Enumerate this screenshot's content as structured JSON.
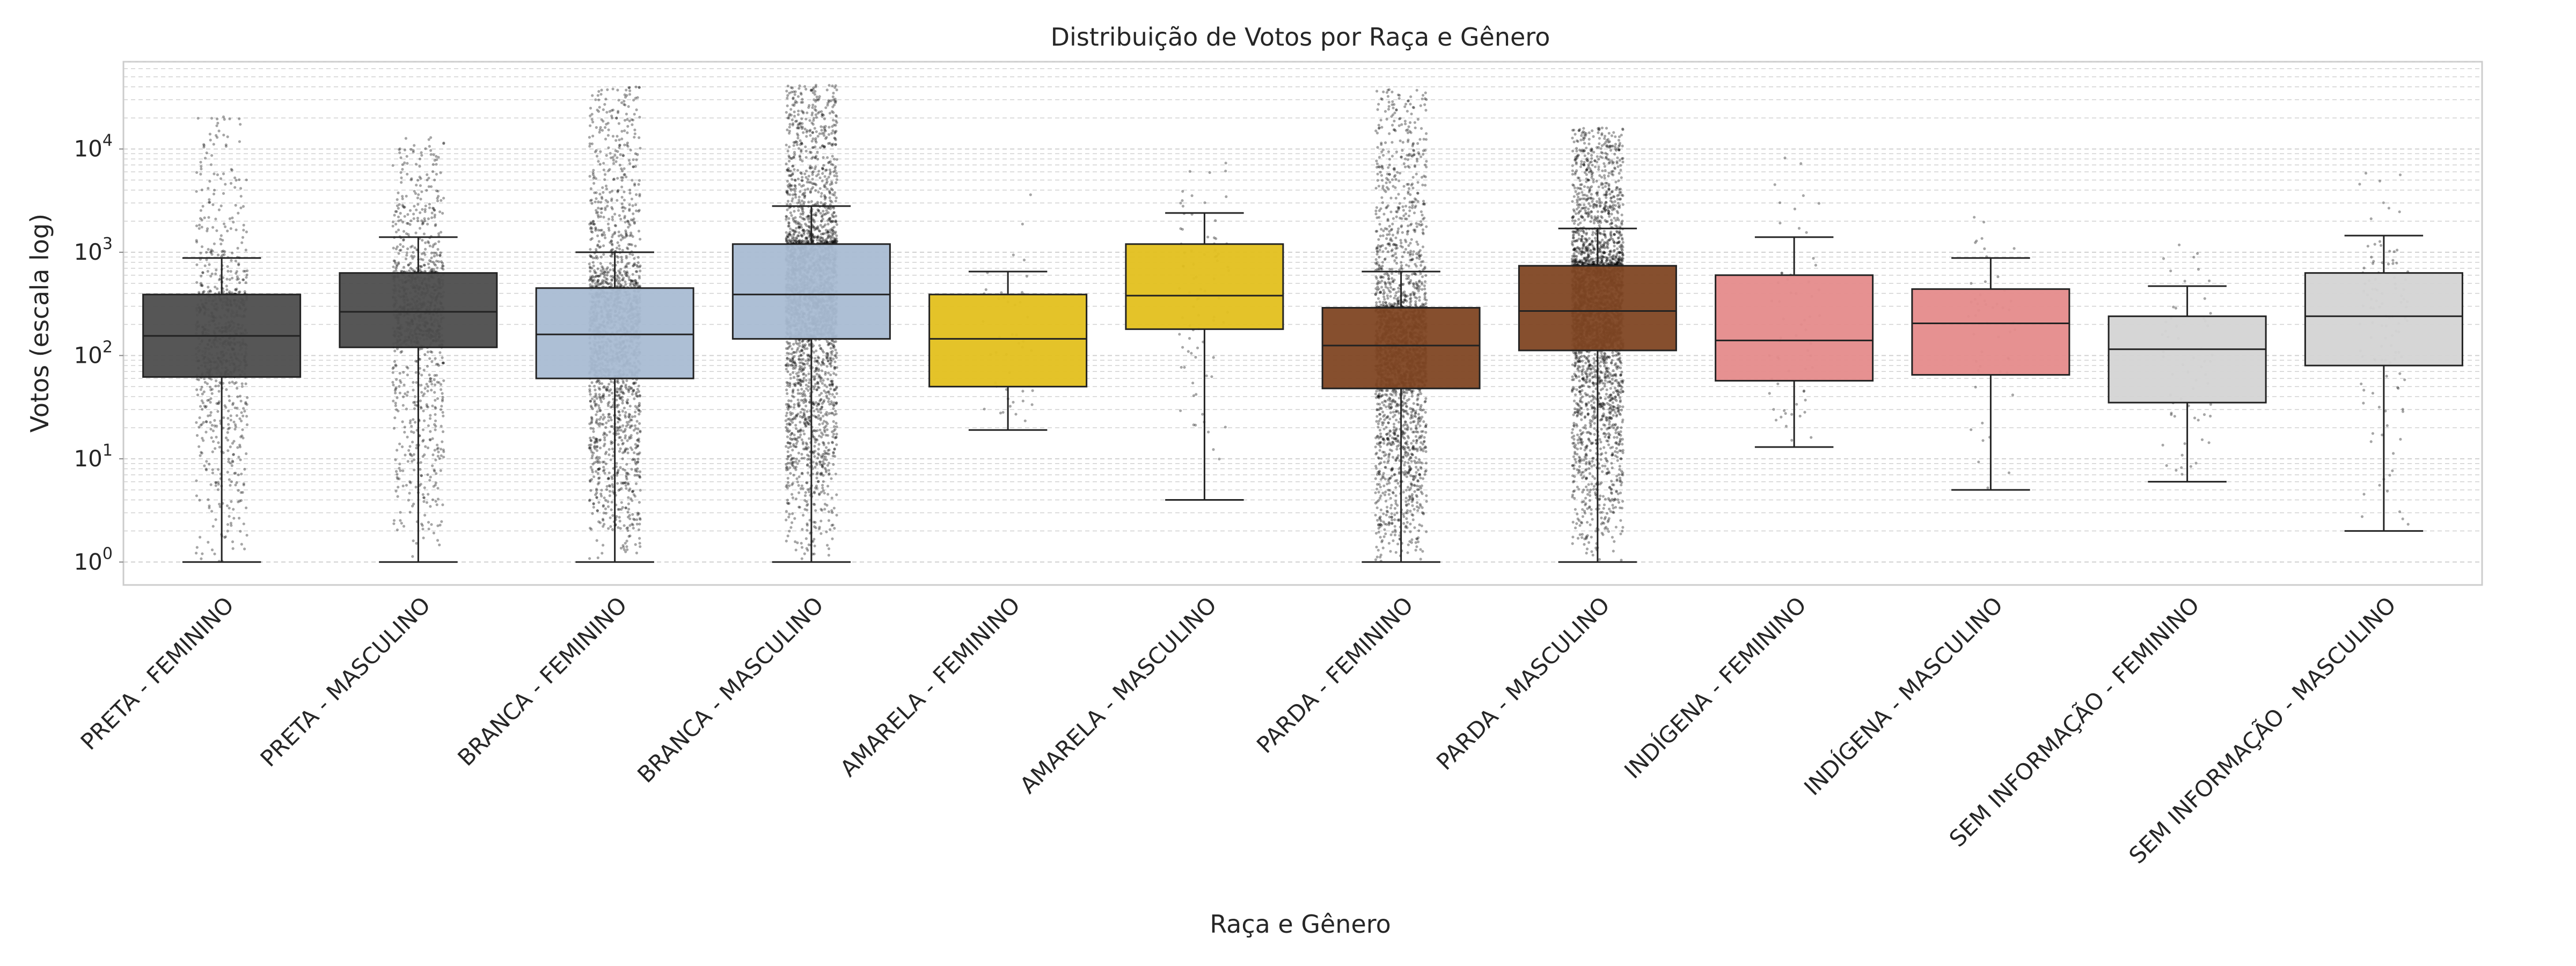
{
  "chart_data": {
    "type": "box",
    "title": "Distribuição de Votos por Raça e Gênero",
    "xlabel": "Raça e Gênero",
    "ylabel": "Votos (escala log)",
    "yscale": "log",
    "ylim": [
      0.6,
      70000
    ],
    "yticks": [
      {
        "value": 1,
        "base": "10",
        "exp": "0"
      },
      {
        "value": 10,
        "base": "10",
        "exp": "1"
      },
      {
        "value": 100,
        "base": "10",
        "exp": "2"
      },
      {
        "value": 1000,
        "base": "10",
        "exp": "3"
      },
      {
        "value": 10000,
        "base": "10",
        "exp": "4"
      }
    ],
    "grid": true,
    "points_overlay": "jittered individual votes (strip plot)",
    "categories": [
      "PRETA - FEMININO",
      "PRETA - MASCULINO",
      "BRANCA - FEMININO",
      "BRANCA - MASCULINO",
      "AMARELA - FEMININO",
      "AMARELA - MASCULINO",
      "PARDA - FEMININO",
      "PARDA - MASCULINO",
      "INDÍGENA - FEMININO",
      "INDÍGENA - MASCULINO",
      "SEM INFORMAÇÃO - FEMININO",
      "SEM INFORMAÇÃO - MASCULINO"
    ],
    "boxes": [
      {
        "whisker_low": 1,
        "q1": 62,
        "median": 155,
        "q3": 390,
        "whisker_high": 880,
        "max": 22000,
        "color": "#4d4d4d",
        "point_density": 900
      },
      {
        "whisker_low": 1,
        "q1": 120,
        "median": 265,
        "q3": 630,
        "whisker_high": 1400,
        "max": 13000,
        "color": "#4d4d4d",
        "point_density": 1100
      },
      {
        "whisker_low": 1,
        "q1": 60,
        "median": 160,
        "q3": 450,
        "whisker_high": 1000,
        "max": 40000,
        "color": "#a9bcd3",
        "point_density": 2200
      },
      {
        "whisker_low": 1,
        "q1": 145,
        "median": 390,
        "q3": 1200,
        "whisker_high": 2800,
        "max": 42000,
        "color": "#a9bcd3",
        "point_density": 3200
      },
      {
        "whisker_low": 19,
        "q1": 50,
        "median": 145,
        "q3": 390,
        "whisker_high": 650,
        "max": 5500,
        "color": "#e3c01d",
        "point_density": 45
      },
      {
        "whisker_low": 4,
        "q1": 180,
        "median": 380,
        "q3": 1200,
        "whisker_high": 2400,
        "max": 9000,
        "color": "#e3c01d",
        "point_density": 80
      },
      {
        "whisker_low": 1,
        "q1": 48,
        "median": 125,
        "q3": 290,
        "whisker_high": 650,
        "max": 38000,
        "color": "#7f4623",
        "point_density": 2600
      },
      {
        "whisker_low": 1,
        "q1": 112,
        "median": 270,
        "q3": 740,
        "whisker_high": 1700,
        "max": 16000,
        "color": "#7f4623",
        "point_density": 3400
      },
      {
        "whisker_low": 13,
        "q1": 57,
        "median": 140,
        "q3": 600,
        "whisker_high": 1400,
        "max": 8500,
        "color": "#e58b8b",
        "point_density": 60
      },
      {
        "whisker_low": 5,
        "q1": 65,
        "median": 205,
        "q3": 440,
        "whisker_high": 880,
        "max": 2800,
        "color": "#e58b8b",
        "point_density": 50
      },
      {
        "whisker_low": 6,
        "q1": 35,
        "median": 115,
        "q3": 240,
        "whisker_high": 470,
        "max": 2700,
        "color": "#d4d4d4",
        "point_density": 60
      },
      {
        "whisker_low": 2,
        "q1": 80,
        "median": 240,
        "q3": 630,
        "whisker_high": 1450,
        "max": 7000,
        "color": "#d4d4d4",
        "point_density": 110
      }
    ]
  }
}
